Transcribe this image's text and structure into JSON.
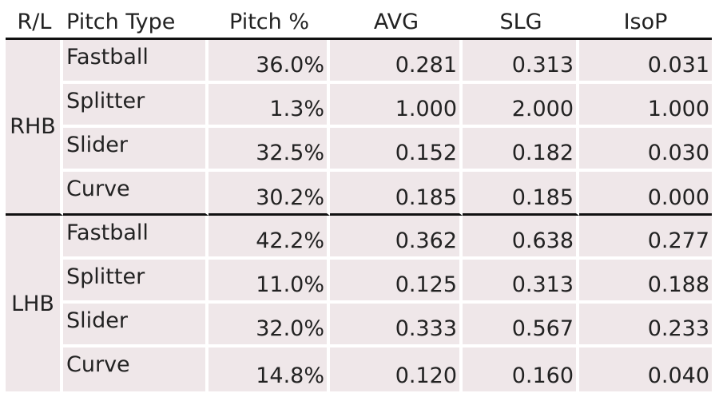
{
  "chart_data": {
    "type": "table",
    "columns": [
      "R/L",
      "Pitch Type",
      "Pitch %",
      "AVG",
      "SLG",
      "IsoP"
    ],
    "groups": [
      {
        "label": "RHB",
        "rows": [
          {
            "pitch_type": "Fastball",
            "pitch_pct": "36.0%",
            "avg": "0.281",
            "slg": "0.313",
            "isop": "0.031"
          },
          {
            "pitch_type": "Splitter",
            "pitch_pct": "1.3%",
            "avg": "1.000",
            "slg": "2.000",
            "isop": "1.000"
          },
          {
            "pitch_type": "Slider",
            "pitch_pct": "32.5%",
            "avg": "0.152",
            "slg": "0.182",
            "isop": "0.030"
          },
          {
            "pitch_type": "Curve",
            "pitch_pct": "30.2%",
            "avg": "0.185",
            "slg": "0.185",
            "isop": "0.000"
          }
        ]
      },
      {
        "label": "LHB",
        "rows": [
          {
            "pitch_type": "Fastball",
            "pitch_pct": "42.2%",
            "avg": "0.362",
            "slg": "0.638",
            "isop": "0.277"
          },
          {
            "pitch_type": "Splitter",
            "pitch_pct": "11.0%",
            "avg": "0.125",
            "slg": "0.313",
            "isop": "0.188"
          },
          {
            "pitch_type": "Slider",
            "pitch_pct": "32.0%",
            "avg": "0.333",
            "slg": "0.567",
            "isop": "0.233"
          },
          {
            "pitch_type": "Curve",
            "pitch_pct": "14.8%",
            "avg": "0.120",
            "slg": "0.160",
            "isop": "0.040"
          }
        ]
      }
    ],
    "colors": {
      "cell_background": "#efe7e9",
      "rule": "#111111",
      "text": "#222222"
    }
  }
}
